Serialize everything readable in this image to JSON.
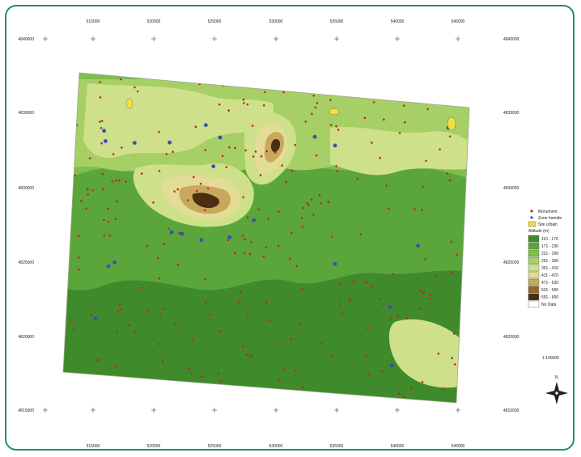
{
  "grid": {
    "top_labels": [
      "515000",
      "520000",
      "525000",
      "530000",
      "535000",
      "540000",
      "545000"
    ],
    "bottom_labels": [
      "515000",
      "520000",
      "525000",
      "530000",
      "535000",
      "540000",
      "545000"
    ],
    "left_labels": [
      "4840000",
      "4835000",
      "4830000",
      "4825000",
      "4820000",
      "4815000"
    ],
    "right_labels": [
      "4840000",
      "4835000",
      "4830000",
      "4825000",
      "4820000",
      "4815000"
    ]
  },
  "legend": {
    "items": [
      {
        "symbol": "dot",
        "color": "#c0281e",
        "label": "Monument"
      },
      {
        "symbol": "dot",
        "color": "#3a4fb0",
        "label": "Zone humide"
      },
      {
        "symbol": "swatch",
        "color": "#f0e23c",
        "label": "Site urbain"
      }
    ],
    "ramp_title": "Altitude (m)",
    "ramp": [
      {
        "color": "#3f8a2a",
        "label": "110 - 170"
      },
      {
        "color": "#5aa63a",
        "label": "171 - 230"
      },
      {
        "color": "#7fbd4e",
        "label": "231 - 290"
      },
      {
        "color": "#a6cf66",
        "label": "291 - 350"
      },
      {
        "color": "#cfe08a",
        "label": "351 - 410"
      },
      {
        "color": "#e3dc96",
        "label": "411 - 470"
      },
      {
        "color": "#c8a85c",
        "label": "471 - 530"
      },
      {
        "color": "#8c6a32",
        "label": "531 - 590"
      },
      {
        "color": "#4a2e12",
        "label": "591 - 650"
      },
      {
        "color": "#ffffff",
        "label": "No Data"
      }
    ]
  },
  "scale": {
    "label": "1:100000"
  },
  "north_arrow": {
    "label": "N"
  },
  "colors": {
    "frame": "#1e8c7c",
    "monument": "#c0281e",
    "wetland": "#3a4fb0",
    "urban": "#f0e23c"
  }
}
